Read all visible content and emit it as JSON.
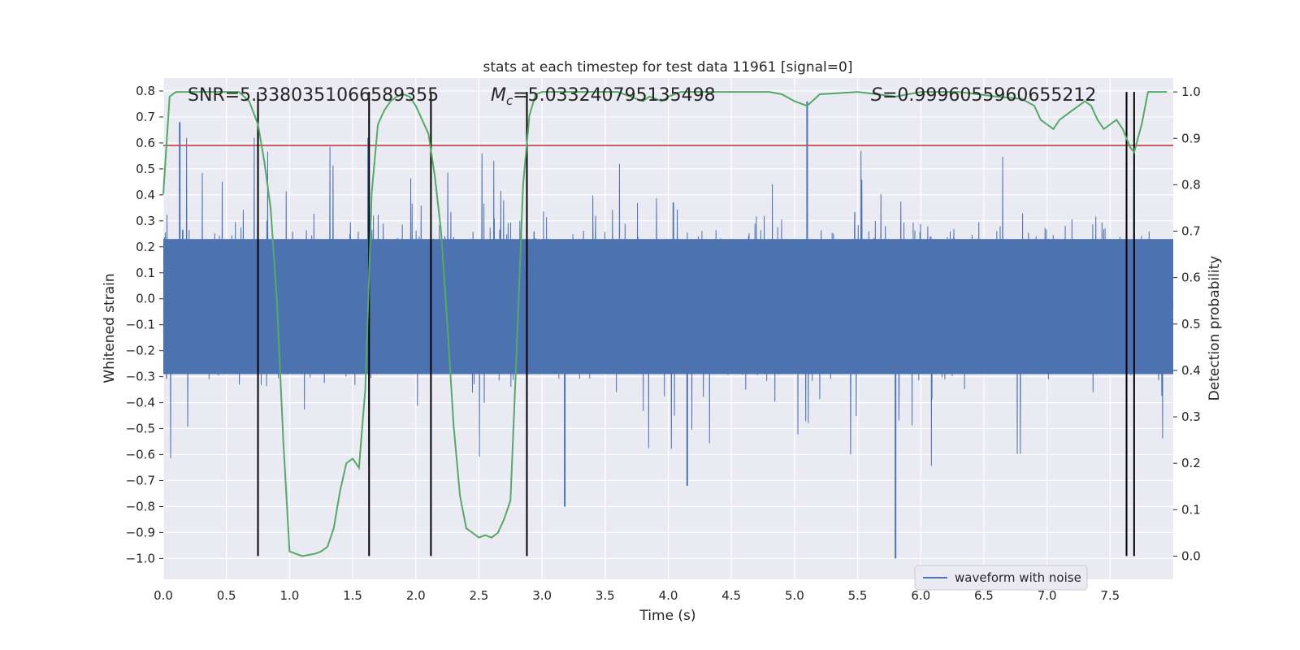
{
  "chart_data": {
    "type": "line",
    "title": "stats at each timestep for test data 11961 [signal=0]",
    "xlabel": "Time (s)",
    "ylabel_left": "Whitened strain",
    "ylabel_right": "Detection probability",
    "xlim": [
      0.0,
      8.0
    ],
    "ylim_left": [
      -1.08,
      0.85
    ],
    "ylim_right": [
      -0.05,
      1.03
    ],
    "x_ticks": [
      "0.0",
      "0.5",
      "1.0",
      "1.5",
      "2.0",
      "2.5",
      "3.0",
      "3.5",
      "4.0",
      "4.5",
      "5.0",
      "5.5",
      "6.0",
      "6.5",
      "7.0",
      "7.5"
    ],
    "y_ticks_left": [
      "0.8",
      "0.7",
      "0.6",
      "0.5",
      "0.4",
      "0.3",
      "0.2",
      "0.1",
      "0.0",
      "-0.1",
      "-0.2",
      "-0.3",
      "-0.4",
      "-0.5",
      "-0.6",
      "-0.7",
      "-0.8",
      "-0.9",
      "-1.0"
    ],
    "y_ticks_right": [
      "1.0",
      "0.9",
      "0.8",
      "0.7",
      "0.6",
      "0.5",
      "0.4",
      "0.3",
      "0.2",
      "0.1",
      "0.0"
    ],
    "annotations": {
      "snr": "SNR=5.3380351066589355",
      "mc_symbol": "M",
      "mc_sub": "c",
      "mc_value": "=5.033240795135498",
      "s_symbol": "S",
      "s_value": "=0.9996055960655212"
    },
    "threshold": {
      "y_left": 0.59,
      "color": "#c44e52"
    },
    "vertical_lines_x": [
      0.75,
      1.63,
      2.12,
      2.88,
      7.63,
      7.69
    ],
    "series": [
      {
        "name": "waveform with noise",
        "color": "#4c72b0",
        "axis": "left",
        "description": "whitened strain noise, approx. range -0.30..0.23 dense, peaks to ~0.76 and ~-1.0",
        "approx_envelope_upper": 0.23,
        "approx_envelope_lower": -0.29,
        "notable_peaks": [
          [
            0.13,
            0.68
          ],
          [
            5.1,
            0.76
          ],
          [
            5.8,
            -1.0
          ],
          [
            3.18,
            -0.8
          ],
          [
            4.15,
            -0.72
          ]
        ]
      },
      {
        "name": "detection probability",
        "color": "#55a868",
        "axis": "right",
        "x": [
          0.0,
          0.05,
          0.1,
          0.2,
          0.3,
          0.4,
          0.5,
          0.6,
          0.68,
          0.75,
          0.8,
          0.85,
          0.9,
          0.95,
          1.0,
          1.1,
          1.2,
          1.25,
          1.3,
          1.35,
          1.4,
          1.45,
          1.5,
          1.55,
          1.6,
          1.63,
          1.65,
          1.7,
          1.75,
          1.8,
          1.85,
          1.9,
          1.95,
          2.0,
          2.05,
          2.1,
          2.15,
          2.2,
          2.25,
          2.3,
          2.35,
          2.4,
          2.45,
          2.5,
          2.55,
          2.6,
          2.65,
          2.7,
          2.75,
          2.8,
          2.85,
          2.9,
          2.95,
          3.0,
          3.2,
          3.4,
          3.6,
          3.7,
          3.8,
          3.85,
          3.9,
          3.95,
          4.0,
          4.1,
          4.3,
          4.6,
          4.8,
          4.9,
          5.0,
          5.05,
          5.1,
          5.2,
          5.5,
          5.8,
          6.0,
          6.3,
          6.6,
          6.8,
          6.9,
          6.95,
          7.0,
          7.05,
          7.1,
          7.15,
          7.2,
          7.25,
          7.3,
          7.35,
          7.4,
          7.45,
          7.5,
          7.55,
          7.6,
          7.63,
          7.66,
          7.69,
          7.75,
          7.8,
          7.85,
          7.9,
          7.95
        ],
        "values": [
          0.78,
          0.99,
          1.0,
          1.0,
          1.0,
          1.0,
          1.0,
          1.0,
          0.98,
          0.93,
          0.85,
          0.75,
          0.55,
          0.25,
          0.01,
          0.0,
          0.005,
          0.01,
          0.02,
          0.06,
          0.14,
          0.2,
          0.21,
          0.19,
          0.36,
          0.6,
          0.78,
          0.93,
          0.96,
          0.98,
          0.99,
          0.995,
          0.99,
          0.97,
          0.94,
          0.91,
          0.82,
          0.7,
          0.5,
          0.28,
          0.13,
          0.06,
          0.05,
          0.04,
          0.045,
          0.04,
          0.05,
          0.08,
          0.12,
          0.45,
          0.8,
          0.95,
          0.995,
          1.0,
          1.0,
          1.0,
          1.0,
          0.99,
          0.98,
          0.99,
          0.985,
          0.98,
          0.99,
          1.0,
          1.0,
          1.0,
          1.0,
          0.995,
          0.98,
          0.975,
          0.97,
          0.995,
          1.0,
          0.99,
          1.0,
          1.0,
          0.99,
          0.985,
          0.97,
          0.94,
          0.93,
          0.92,
          0.94,
          0.95,
          0.96,
          0.97,
          0.98,
          0.97,
          0.94,
          0.92,
          0.93,
          0.94,
          0.92,
          0.9,
          0.88,
          0.87,
          0.93,
          1.0,
          1.0,
          1.0,
          1.0
        ]
      }
    ],
    "legend": {
      "entries": [
        "waveform with noise"
      ],
      "placement": "lower-right"
    }
  }
}
